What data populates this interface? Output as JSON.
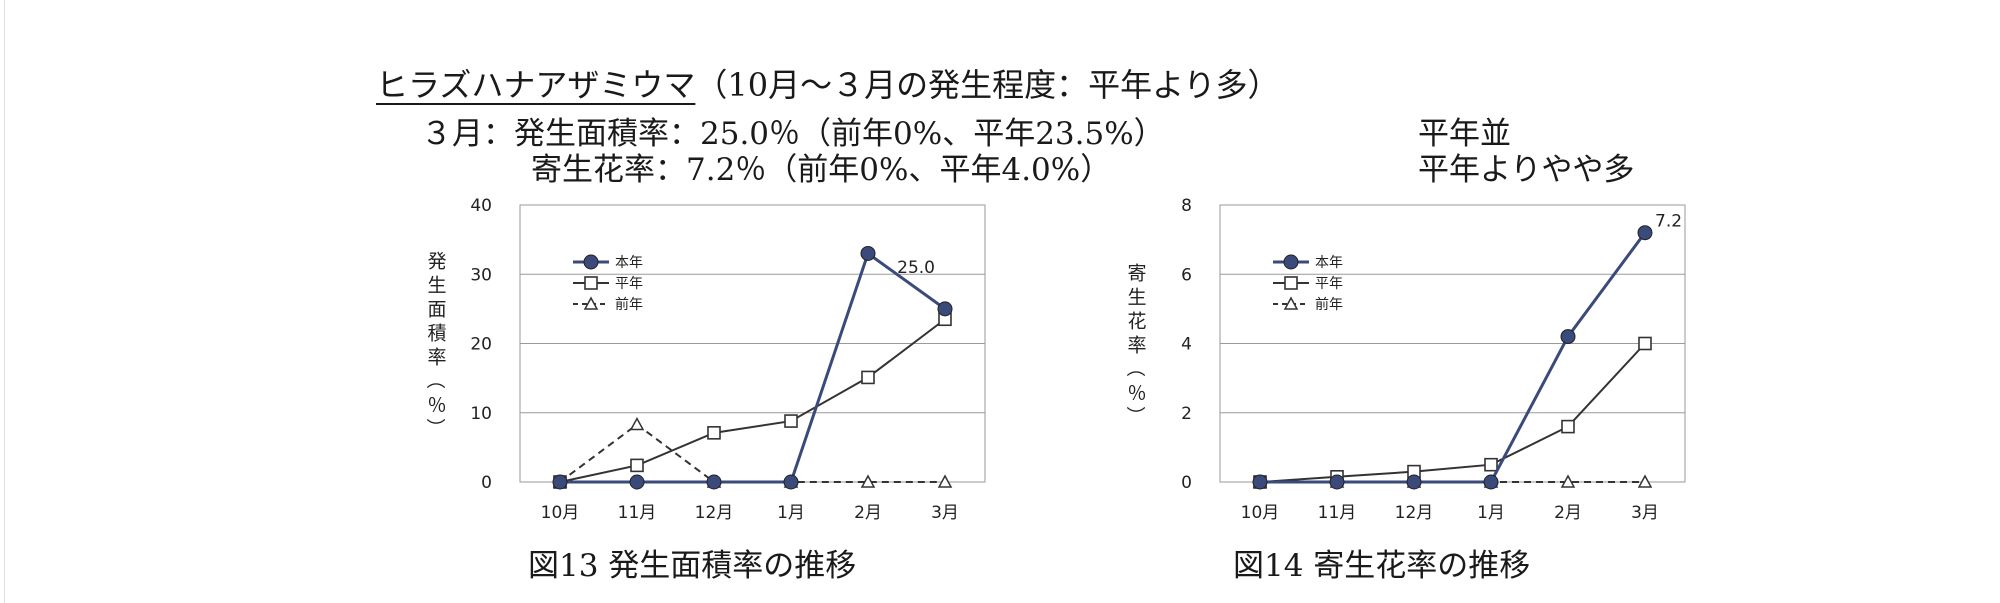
{
  "document": {
    "heading_pest": "ヒラズハナアザミウマ",
    "heading_rest": "（10月～３月の発生程度：平年より多）",
    "line1_text": "３月：発生面積率：25.0％（前年0%、平年23.5%）",
    "line1_assessment": "平年並",
    "line2_text": "寄生花率：7.2％（前年0%、平年4.0%）",
    "line2_assessment": "平年よりやや多"
  },
  "chart_data": [
    {
      "type": "line",
      "caption": "図13 発生面積率の推移",
      "ylabel": "発生面積率（％）",
      "categories": [
        "10月",
        "11月",
        "12月",
        "1月",
        "2月",
        "3月"
      ],
      "ylim": [
        0,
        40
      ],
      "yticks": [
        "0",
        "10",
        "20",
        "30",
        "40"
      ],
      "grid": true,
      "legend_position": "top-left",
      "series": [
        {
          "name": "本年",
          "values": [
            0,
            0,
            0,
            0,
            33.0,
            25.0
          ],
          "color": "#3a4a7a",
          "marker": "filled-circle",
          "dashed": false
        },
        {
          "name": "平年",
          "values": [
            0,
            2.4,
            7.1,
            8.8,
            15.1,
            23.5
          ],
          "color": "#333333",
          "marker": "open-square",
          "dashed": false
        },
        {
          "name": "前年",
          "values": [
            0,
            8.3,
            0,
            0,
            0,
            0
          ],
          "color": "#333333",
          "marker": "open-triangle",
          "dashed": true
        }
      ],
      "data_label": {
        "series": 0,
        "index": 5,
        "text": "25.0"
      }
    },
    {
      "type": "line",
      "caption": "図14 寄生花率の推移",
      "ylabel": "寄生花率（％）",
      "categories": [
        "10月",
        "11月",
        "12月",
        "1月",
        "2月",
        "3月"
      ],
      "ylim": [
        0,
        8
      ],
      "yticks": [
        "0",
        "2",
        "4",
        "6",
        "8"
      ],
      "grid": true,
      "legend_position": "top-left",
      "series": [
        {
          "name": "本年",
          "values": [
            0,
            0,
            0,
            0,
            4.2,
            7.2
          ],
          "color": "#3a4a7a",
          "marker": "filled-circle",
          "dashed": false
        },
        {
          "name": "平年",
          "values": [
            0,
            0.15,
            0.3,
            0.5,
            1.6,
            4.0
          ],
          "color": "#333333",
          "marker": "open-square",
          "dashed": false
        },
        {
          "name": "前年",
          "values": [
            0,
            0,
            0,
            0,
            0,
            0
          ],
          "color": "#333333",
          "marker": "open-triangle",
          "dashed": true
        }
      ],
      "data_label": {
        "series": 0,
        "index": 5,
        "text": "7.2"
      }
    }
  ]
}
